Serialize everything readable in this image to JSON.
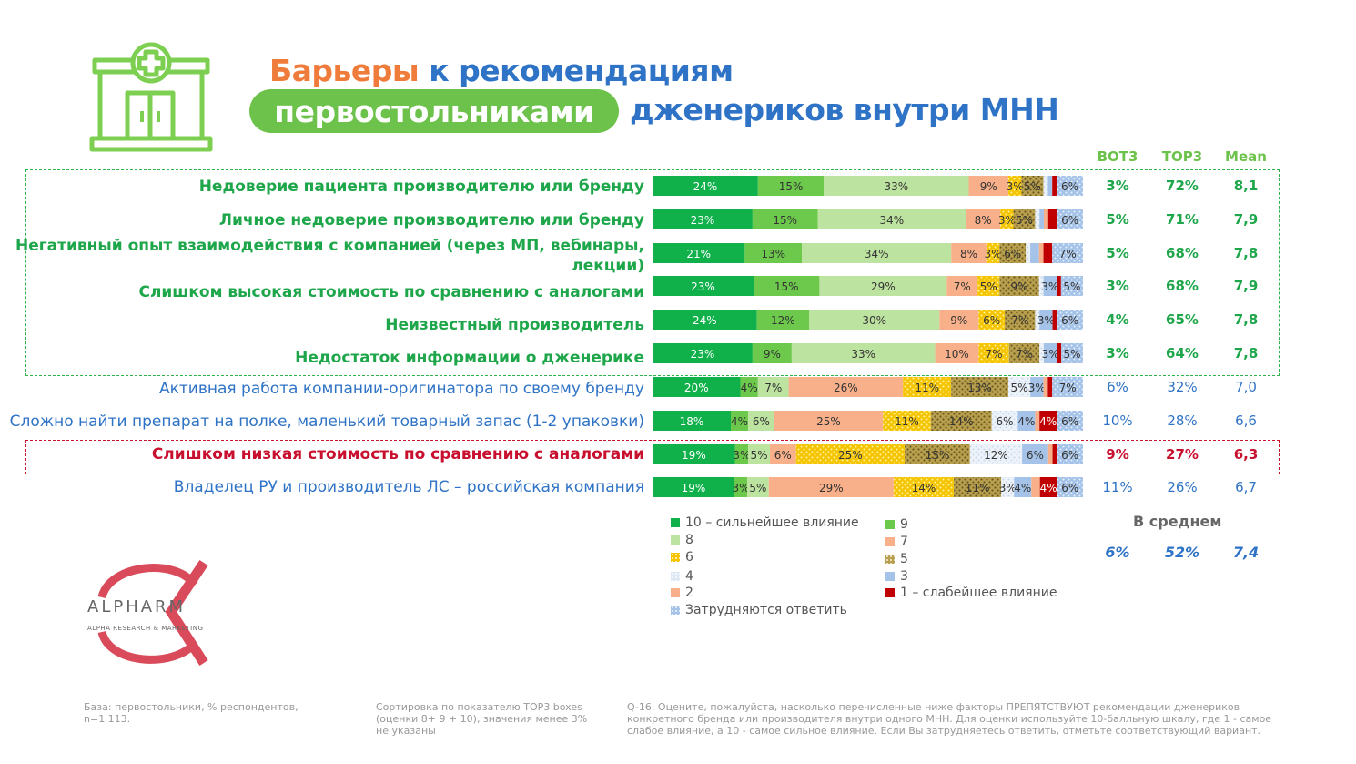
{
  "title": {
    "part1": "Барьеры",
    "part2": "к рекомендациям",
    "pill": "первостольниками",
    "part3": "дженериков внутри МНН"
  },
  "columns": {
    "bot3": "BOT3",
    "top3": "TOP3",
    "mean": "Mean"
  },
  "colors": {
    "c10": "#10b04a",
    "c9": "#6cc94c",
    "c8": "#bde3a0",
    "c7": "#f8b08a",
    "c6": "#f5c400",
    "c5": "#b9a04e",
    "c4": "#dde8f5",
    "c3": "#a5c3e8",
    "c2": "#f8b08a",
    "c1": "#c00000",
    "cdk": "#a5c3e8"
  },
  "chart_data": {
    "type": "stacked_bar",
    "scale_categories": [
      "10",
      "9",
      "8",
      "7",
      "6",
      "5",
      "4",
      "3",
      "2",
      "1",
      "dk"
    ],
    "rows": [
      {
        "label": "Недоверие пациента производителю или бренду",
        "style": "green",
        "values": [
          24,
          15,
          33,
          9,
          3,
          5,
          1,
          1,
          0,
          1,
          6
        ],
        "labels": [
          "24%",
          "15%",
          "33%",
          "9%",
          "3%",
          "5%",
          "",
          "",
          "",
          "",
          "6%"
        ],
        "bot3": "3%",
        "top3": "72%",
        "mean": "8,1"
      },
      {
        "label": "Личное недоверие производителю или бренду",
        "style": "green",
        "values": [
          23,
          15,
          34,
          8,
          3,
          5,
          1,
          1,
          1,
          2,
          6
        ],
        "labels": [
          "23%",
          "15%",
          "34%",
          "8%",
          "3%",
          "5%",
          "",
          "",
          "",
          "",
          "6%"
        ],
        "bot3": "5%",
        "top3": "71%",
        "mean": "7,9"
      },
      {
        "label": "Негативный опыт взаимодействия с компанией (через МП, вебинары, лекции)",
        "style": "green",
        "values": [
          21,
          13,
          34,
          8,
          3,
          6,
          1,
          2,
          1,
          2,
          7
        ],
        "labels": [
          "21%",
          "13%",
          "34%",
          "8%",
          "3%",
          "6%",
          "",
          "",
          "",
          "",
          "7%"
        ],
        "bot3": "5%",
        "top3": "68%",
        "mean": "7,8"
      },
      {
        "label": "Слишком высокая стоимость по сравнению с аналогами",
        "style": "green",
        "values": [
          23,
          15,
          29,
          7,
          5,
          9,
          1,
          3,
          0,
          1,
          5
        ],
        "labels": [
          "23%",
          "15%",
          "29%",
          "7%",
          "5%",
          "9%",
          "",
          "3%",
          "",
          "",
          "5%"
        ],
        "bot3": "3%",
        "top3": "68%",
        "mean": "7,9"
      },
      {
        "label": "Неизвестный производитель",
        "style": "green",
        "values": [
          24,
          12,
          30,
          9,
          6,
          7,
          1,
          3,
          0,
          1,
          6
        ],
        "labels": [
          "24%",
          "12%",
          "30%",
          "9%",
          "6%",
          "7%",
          "",
          "3%",
          "",
          "",
          "6%"
        ],
        "bot3": "4%",
        "top3": "65%",
        "mean": "7,8"
      },
      {
        "label": "Недостаток информации о дженерике",
        "style": "green",
        "values": [
          23,
          9,
          33,
          10,
          7,
          7,
          1,
          3,
          0,
          1,
          5
        ],
        "labels": [
          "23%",
          "9%",
          "33%",
          "10%",
          "7%",
          "7%",
          "",
          "3%",
          "",
          "",
          "5%"
        ],
        "bot3": "3%",
        "top3": "64%",
        "mean": "7,8"
      },
      {
        "label": "Активная работа компании-оригинатора по своему бренду",
        "style": "blue",
        "values": [
          20,
          4,
          7,
          26,
          11,
          13,
          5,
          3,
          1,
          1,
          7
        ],
        "labels": [
          "20%",
          "4%",
          "7%",
          "26%",
          "11%",
          "13%",
          "5%",
          "3%",
          "",
          "",
          "7%"
        ],
        "bot3": "6%",
        "top3": "32%",
        "mean": "7,0"
      },
      {
        "label": "Сложно найти препарат на полке, маленький товарный запас (1-2 упаковки)",
        "style": "blue",
        "values": [
          18,
          4,
          6,
          25,
          11,
          14,
          6,
          4,
          1,
          4,
          6
        ],
        "labels": [
          "18%",
          "4%",
          "6%",
          "25%",
          "11%",
          "14%",
          "6%",
          "4%",
          "",
          "4%",
          "6%"
        ],
        "bot3": "10%",
        "top3": "28%",
        "mean": "6,6"
      },
      {
        "label": "Слишком низкая стоимость по сравнению с аналогами",
        "style": "red",
        "values": [
          19,
          3,
          5,
          6,
          25,
          15,
          12,
          6,
          1,
          1,
          6
        ],
        "labels": [
          "19%",
          "3%",
          "5%",
          "6%",
          "25%",
          "15%",
          "12%",
          "6%",
          "",
          "",
          "6%"
        ],
        "bot3": "9%",
        "top3": "27%",
        "mean": "6,3"
      },
      {
        "label": "Владелец РУ и производитель ЛС – российская компания",
        "style": "blue",
        "values": [
          19,
          3,
          5,
          29,
          14,
          11,
          3,
          4,
          2,
          4,
          6
        ],
        "labels": [
          "19%",
          "3%",
          "5%",
          "29%",
          "14%",
          "11%",
          "3%",
          "4%",
          "",
          "4%",
          "6%"
        ],
        "bot3": "11%",
        "top3": "26%",
        "mean": "6,7"
      }
    ],
    "legend": [
      {
        "key": "c10",
        "label": "10 – сильнейшее влияние"
      },
      {
        "key": "c9",
        "label": "9"
      },
      {
        "key": "c8",
        "label": "8"
      },
      {
        "key": "c7",
        "label": "7"
      },
      {
        "key": "c6",
        "label": "6"
      },
      {
        "key": "c5",
        "label": "5"
      },
      {
        "key": "c4",
        "label": "4"
      },
      {
        "key": "c3",
        "label": "3"
      },
      {
        "key": "c2",
        "label": "2"
      },
      {
        "key": "c1",
        "label": "1 – слабейшее влияние"
      },
      {
        "key": "cdk",
        "label": "Затрудняются ответить"
      }
    ],
    "average": {
      "label": "В среднем",
      "bot3": "6%",
      "top3": "52%",
      "mean": "7,4"
    }
  },
  "logo": {
    "name": "ALPHARM",
    "sub": "ALPHA RESEARCH & MARKETING"
  },
  "footer": {
    "base": "База: первостольники, % респондентов, n=1 113.",
    "sort": "Сортировка по показателю TOP3 boxes (оценки 8+ 9 + 10), значения менее 3% не указаны",
    "question": "Q-16. Оцените, пожалуйста, насколько перечисленные ниже факторы ПРЕПЯТСТВУЮТ рекомендации дженериков конкретного бренда или производителя внутри одного МНН. Для оценки используйте 10-балльную шкалу, где 1 - самое слабое влияние, а 10 - самое сильное влияние. Если Вы затрудняетесь ответить, отметьте соответствующий вариант."
  }
}
